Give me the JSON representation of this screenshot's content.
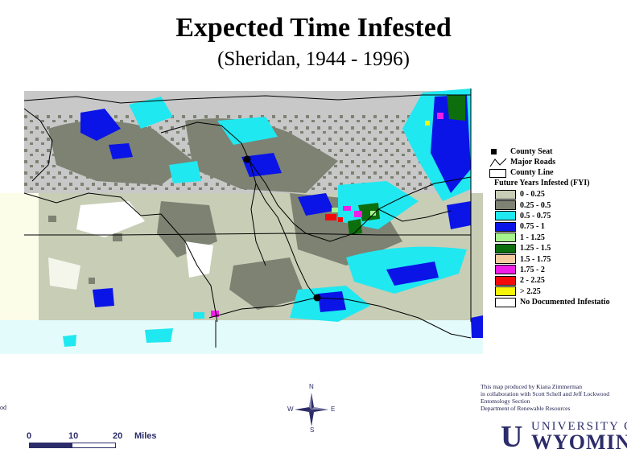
{
  "title": "Expected Time Infested",
  "subtitle": "(Sheridan, 1944 - 1996)",
  "legend": {
    "symbols": [
      {
        "label": "County Seat",
        "icon": "county-seat-icon"
      },
      {
        "label": "Major Roads",
        "icon": "major-roads-icon"
      },
      {
        "label": "County Line",
        "icon": "county-line-icon"
      }
    ],
    "header": "Future Years Infested (FYI)",
    "classes": [
      {
        "label": "0 - 0.25",
        "color": "#c8cdb6"
      },
      {
        "label": "0.25 - 0.5",
        "color": "#7d8273"
      },
      {
        "label": "0.5 - 0.75",
        "color": "#1fe8f0"
      },
      {
        "label": "0.75 - 1",
        "color": "#0a14e6"
      },
      {
        "label": "1 - 1.25",
        "color": "#a6f58c"
      },
      {
        "label": "1.25 - 1.5",
        "color": "#0c6e0c"
      },
      {
        "label": "1.5 - 1.75",
        "color": "#f5cba0"
      },
      {
        "label": "1.75 - 2",
        "color": "#f01ee6"
      },
      {
        "label": "2 - 2.25",
        "color": "#f50a0a"
      },
      {
        "label": "> 2.25",
        "color": "#f5f50a"
      },
      {
        "label": "No Documented Infestatio",
        "color": "#ffffff"
      }
    ]
  },
  "credit": [
    "This map produced by Kiana Zimmerman",
    "in collaboration with Scott Schell and Jeff Lockwood",
    "Entomology Section",
    "Department of Renewable Resources"
  ],
  "logo": {
    "top": "UNIVERSITY OF",
    "bottom": "WYOMING",
    "mark": "U"
  },
  "scale": {
    "ticks": [
      "0",
      "10",
      "20"
    ],
    "units": "Miles"
  },
  "compass": {
    "n": "N",
    "s": "S",
    "e": "E",
    "w": "W"
  },
  "edge_text": "od",
  "colors": {
    "background": "#ffffff",
    "map_gray": "#c8c8c8",
    "lower_band": "#e4fbfb",
    "line": "#000000"
  }
}
